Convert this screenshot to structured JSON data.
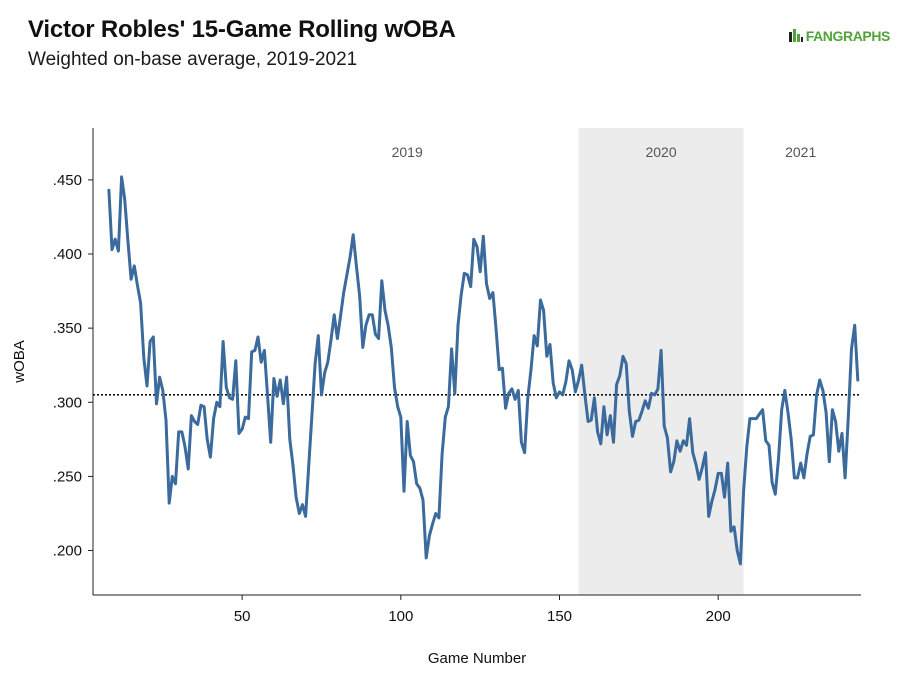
{
  "header": {
    "title": "Victor Robles' 15-Game Rolling wOBA",
    "subtitle": "Weighted on-base average, 2019-2021",
    "logo_text": "FANGRAPHS"
  },
  "colors": {
    "line": "#3b6a9c",
    "shade": "#ececec",
    "axis": "#222222",
    "logo": "#51a33a"
  },
  "chart_data": {
    "type": "line",
    "title": "Victor Robles' 15-Game Rolling wOBA",
    "subtitle": "Weighted on-base average, 2019-2021",
    "xlabel": "Game Number",
    "ylabel": "wOBA",
    "xlim": [
      3,
      245
    ],
    "ylim": [
      0.17,
      0.485
    ],
    "xticks": [
      50,
      100,
      150,
      200
    ],
    "xtick_labels": [
      "50",
      "100",
      "150",
      "200"
    ],
    "yticks": [
      0.2,
      0.25,
      0.3,
      0.35,
      0.4,
      0.45
    ],
    "ytick_labels": [
      ".200",
      ".250",
      ".300",
      ".350",
      ".400",
      ".450"
    ],
    "grid": false,
    "reference_line": {
      "y": 0.305,
      "style": "dotted"
    },
    "shaded_region": {
      "x_start": 156,
      "x_end": 208,
      "label": "2020"
    },
    "season_labels": [
      {
        "label": "2019",
        "x": 102
      },
      {
        "label": "2020",
        "x": 182
      },
      {
        "label": "2021",
        "x": 226
      }
    ],
    "series": [
      {
        "points": [
          [
            8,
            0.443
          ],
          [
            9,
            0.403
          ],
          [
            10,
            0.41
          ],
          [
            11,
            0.402
          ],
          [
            12,
            0.452
          ],
          [
            13,
            0.437
          ],
          [
            14,
            0.409
          ],
          [
            15,
            0.383
          ],
          [
            16,
            0.392
          ],
          [
            17,
            0.379
          ],
          [
            18,
            0.367
          ],
          [
            19,
            0.33
          ],
          [
            20,
            0.311
          ],
          [
            21,
            0.341
          ],
          [
            22,
            0.344
          ],
          [
            23,
            0.299
          ],
          [
            24,
            0.317
          ],
          [
            25,
            0.308
          ],
          [
            26,
            0.288
          ],
          [
            27,
            0.232
          ],
          [
            28,
            0.25
          ],
          [
            29,
            0.245
          ],
          [
            30,
            0.28
          ],
          [
            31,
            0.28
          ],
          [
            32,
            0.27
          ],
          [
            33,
            0.255
          ],
          [
            34,
            0.291
          ],
          [
            35,
            0.287
          ],
          [
            36,
            0.285
          ],
          [
            37,
            0.298
          ],
          [
            38,
            0.297
          ],
          [
            39,
            0.275
          ],
          [
            40,
            0.263
          ],
          [
            41,
            0.289
          ],
          [
            42,
            0.3
          ],
          [
            43,
            0.297
          ],
          [
            44,
            0.341
          ],
          [
            45,
            0.31
          ],
          [
            46,
            0.303
          ],
          [
            47,
            0.302
          ],
          [
            48,
            0.328
          ],
          [
            49,
            0.279
          ],
          [
            50,
            0.282
          ],
          [
            51,
            0.29
          ],
          [
            52,
            0.289
          ],
          [
            53,
            0.334
          ],
          [
            54,
            0.335
          ],
          [
            55,
            0.344
          ],
          [
            56,
            0.327
          ],
          [
            57,
            0.335
          ],
          [
            58,
            0.305
          ],
          [
            59,
            0.273
          ],
          [
            60,
            0.316
          ],
          [
            61,
            0.304
          ],
          [
            62,
            0.315
          ],
          [
            63,
            0.299
          ],
          [
            64,
            0.317
          ],
          [
            65,
            0.275
          ],
          [
            66,
            0.258
          ],
          [
            67,
            0.236
          ],
          [
            68,
            0.225
          ],
          [
            69,
            0.231
          ],
          [
            70,
            0.223
          ],
          [
            71,
            0.258
          ],
          [
            72,
            0.292
          ],
          [
            73,
            0.326
          ],
          [
            74,
            0.345
          ],
          [
            75,
            0.305
          ],
          [
            76,
            0.32
          ],
          [
            77,
            0.327
          ],
          [
            78,
            0.342
          ],
          [
            79,
            0.359
          ],
          [
            80,
            0.343
          ],
          [
            81,
            0.358
          ],
          [
            82,
            0.374
          ],
          [
            83,
            0.386
          ],
          [
            84,
            0.398
          ],
          [
            85,
            0.413
          ],
          [
            86,
            0.392
          ],
          [
            87,
            0.372
          ],
          [
            88,
            0.337
          ],
          [
            89,
            0.352
          ],
          [
            90,
            0.359
          ],
          [
            91,
            0.359
          ],
          [
            92,
            0.346
          ],
          [
            93,
            0.343
          ],
          [
            94,
            0.382
          ],
          [
            95,
            0.362
          ],
          [
            96,
            0.352
          ],
          [
            97,
            0.337
          ],
          [
            98,
            0.31
          ],
          [
            99,
            0.297
          ],
          [
            100,
            0.29
          ],
          [
            101,
            0.24
          ],
          [
            102,
            0.287
          ],
          [
            103,
            0.264
          ],
          [
            104,
            0.26
          ],
          [
            105,
            0.245
          ],
          [
            106,
            0.242
          ],
          [
            107,
            0.234
          ],
          [
            108,
            0.195
          ],
          [
            109,
            0.21
          ],
          [
            110,
            0.218
          ],
          [
            111,
            0.225
          ],
          [
            112,
            0.222
          ],
          [
            113,
            0.265
          ],
          [
            114,
            0.29
          ],
          [
            115,
            0.297
          ],
          [
            116,
            0.336
          ],
          [
            117,
            0.306
          ],
          [
            118,
            0.352
          ],
          [
            119,
            0.372
          ],
          [
            120,
            0.387
          ],
          [
            121,
            0.386
          ],
          [
            122,
            0.378
          ],
          [
            123,
            0.41
          ],
          [
            124,
            0.405
          ],
          [
            125,
            0.388
          ],
          [
            126,
            0.412
          ],
          [
            127,
            0.38
          ],
          [
            128,
            0.37
          ],
          [
            129,
            0.374
          ],
          [
            130,
            0.35
          ],
          [
            131,
            0.322
          ],
          [
            132,
            0.323
          ],
          [
            133,
            0.296
          ],
          [
            134,
            0.306
          ],
          [
            135,
            0.309
          ],
          [
            136,
            0.302
          ],
          [
            137,
            0.308
          ],
          [
            138,
            0.273
          ],
          [
            139,
            0.266
          ],
          [
            140,
            0.303
          ],
          [
            141,
            0.322
          ],
          [
            142,
            0.345
          ],
          [
            143,
            0.338
          ],
          [
            144,
            0.369
          ],
          [
            145,
            0.362
          ],
          [
            146,
            0.331
          ],
          [
            147,
            0.339
          ],
          [
            148,
            0.313
          ],
          [
            149,
            0.303
          ],
          [
            150,
            0.307
          ],
          [
            151,
            0.305
          ],
          [
            152,
            0.314
          ],
          [
            153,
            0.328
          ],
          [
            154,
            0.322
          ],
          [
            155,
            0.307
          ],
          [
            156,
            0.315
          ],
          [
            157,
            0.325
          ],
          [
            158,
            0.305
          ],
          [
            159,
            0.287
          ],
          [
            160,
            0.288
          ],
          [
            161,
            0.303
          ],
          [
            162,
            0.28
          ],
          [
            163,
            0.272
          ],
          [
            164,
            0.297
          ],
          [
            165,
            0.278
          ],
          [
            166,
            0.291
          ],
          [
            167,
            0.273
          ],
          [
            168,
            0.312
          ],
          [
            169,
            0.318
          ],
          [
            170,
            0.331
          ],
          [
            171,
            0.326
          ],
          [
            172,
            0.294
          ],
          [
            173,
            0.277
          ],
          [
            174,
            0.287
          ],
          [
            175,
            0.288
          ],
          [
            176,
            0.294
          ],
          [
            177,
            0.301
          ],
          [
            178,
            0.296
          ],
          [
            179,
            0.306
          ],
          [
            180,
            0.305
          ],
          [
            181,
            0.309
          ],
          [
            182,
            0.335
          ],
          [
            183,
            0.284
          ],
          [
            184,
            0.276
          ],
          [
            185,
            0.253
          ],
          [
            186,
            0.26
          ],
          [
            187,
            0.274
          ],
          [
            188,
            0.267
          ],
          [
            189,
            0.274
          ],
          [
            190,
            0.271
          ],
          [
            191,
            0.289
          ],
          [
            192,
            0.266
          ],
          [
            193,
            0.258
          ],
          [
            194,
            0.248
          ],
          [
            195,
            0.256
          ],
          [
            196,
            0.266
          ],
          [
            197,
            0.223
          ],
          [
            198,
            0.233
          ],
          [
            199,
            0.241
          ],
          [
            200,
            0.252
          ],
          [
            201,
            0.252
          ],
          [
            202,
            0.236
          ],
          [
            203,
            0.259
          ],
          [
            204,
            0.213
          ],
          [
            205,
            0.216
          ],
          [
            206,
            0.2
          ],
          [
            207,
            0.191
          ],
          [
            208,
            0.24
          ],
          [
            209,
            0.27
          ],
          [
            210,
            0.289
          ],
          [
            211,
            0.289
          ],
          [
            212,
            0.289
          ],
          [
            213,
            0.292
          ],
          [
            214,
            0.295
          ],
          [
            215,
            0.274
          ],
          [
            216,
            0.271
          ],
          [
            217,
            0.246
          ],
          [
            218,
            0.238
          ],
          [
            219,
            0.262
          ],
          [
            220,
            0.295
          ],
          [
            221,
            0.308
          ],
          [
            222,
            0.293
          ],
          [
            223,
            0.275
          ],
          [
            224,
            0.249
          ],
          [
            225,
            0.249
          ],
          [
            226,
            0.259
          ],
          [
            227,
            0.249
          ],
          [
            228,
            0.265
          ],
          [
            229,
            0.277
          ],
          [
            230,
            0.278
          ],
          [
            231,
            0.305
          ],
          [
            232,
            0.315
          ],
          [
            233,
            0.308
          ],
          [
            234,
            0.293
          ],
          [
            235,
            0.26
          ],
          [
            236,
            0.295
          ],
          [
            237,
            0.287
          ],
          [
            238,
            0.267
          ],
          [
            239,
            0.279
          ],
          [
            240,
            0.249
          ],
          [
            241,
            0.29
          ],
          [
            242,
            0.336
          ],
          [
            243,
            0.352
          ],
          [
            244,
            0.315
          ]
        ]
      }
    ]
  }
}
